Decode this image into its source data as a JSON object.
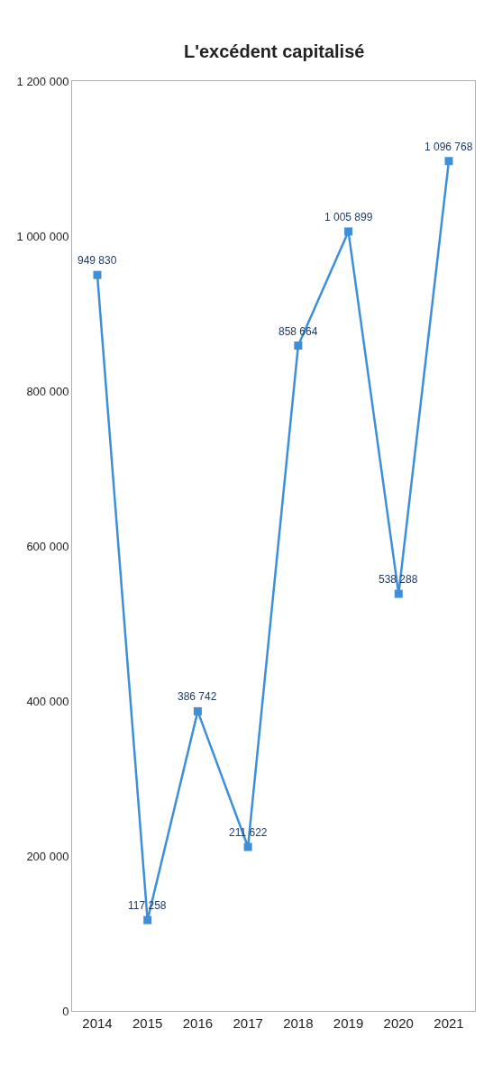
{
  "chart_data": {
    "type": "line",
    "title": "L'excédent capitalisé",
    "categories": [
      "2014",
      "2015",
      "2016",
      "2017",
      "2018",
      "2019",
      "2020",
      "2021"
    ],
    "values": [
      949830,
      117258,
      386742,
      211622,
      858664,
      1005899,
      538288,
      1096768
    ],
    "value_labels": [
      "949 830",
      "117 258",
      "386 742",
      "211 622",
      "858 664",
      "1 005 899",
      "538 288",
      "1 096 768"
    ],
    "color": "#3d8fd9",
    "marker": "square",
    "ylim": [
      0,
      1200000
    ],
    "yticks": [
      {
        "value": 0,
        "label": "0"
      },
      {
        "value": 200000,
        "label": "200 000"
      },
      {
        "value": 400000,
        "label": "400 000"
      },
      {
        "value": 600000,
        "label": "600 000"
      },
      {
        "value": 800000,
        "label": "800 000"
      },
      {
        "value": 1000000,
        "label": "1 000 000"
      },
      {
        "value": 1200000,
        "label": "1 200 000"
      }
    ]
  }
}
